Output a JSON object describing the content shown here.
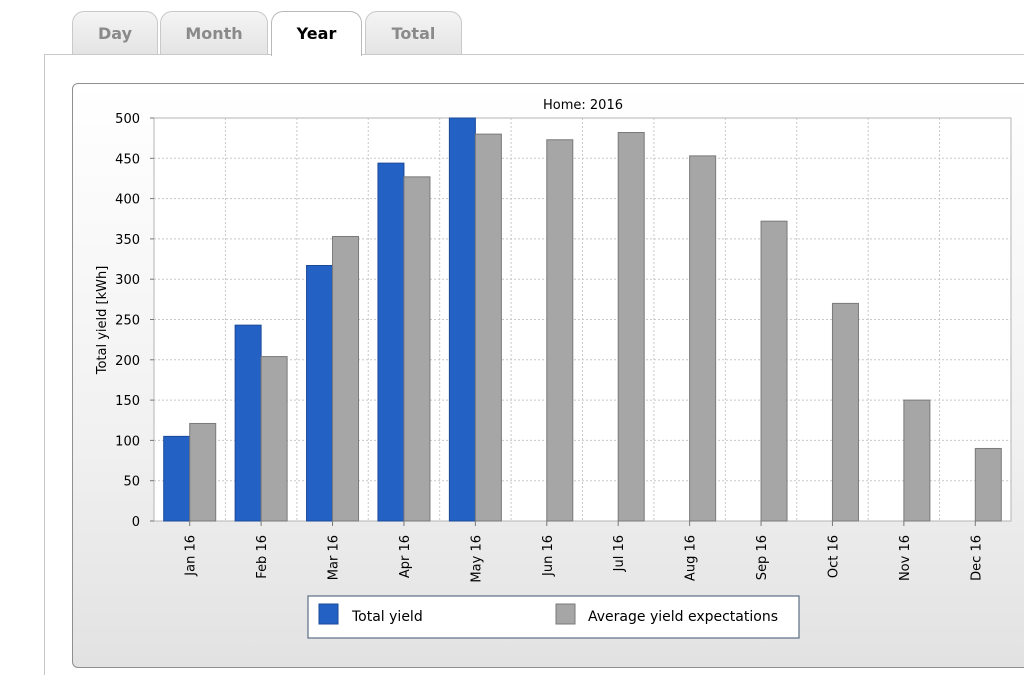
{
  "tabs": [
    {
      "label": "Day",
      "active": false
    },
    {
      "label": "Month",
      "active": false
    },
    {
      "label": "Year",
      "active": true
    },
    {
      "label": "Total",
      "active": false
    }
  ],
  "colors": {
    "total_yield": "#2461c4",
    "average_yield": "#a6a6a6"
  },
  "chart_data": {
    "type": "bar",
    "title": "Home: 2016",
    "xlabel": "",
    "ylabel": "Total yield [kWh]",
    "ylim": [
      0,
      500
    ],
    "yticks": [
      0,
      50,
      100,
      150,
      200,
      250,
      300,
      350,
      400,
      450,
      500
    ],
    "grid": true,
    "legend_position": "bottom",
    "categories": [
      "Jan 16",
      "Feb 16",
      "Mar 16",
      "Apr 16",
      "May 16",
      "Jun 16",
      "Jul 16",
      "Aug 16",
      "Sep 16",
      "Oct 16",
      "Nov 16",
      "Dec 16"
    ],
    "series": [
      {
        "name": "Total yield",
        "color": "#2461c4",
        "values": [
          105,
          243,
          317,
          444,
          500,
          null,
          null,
          null,
          null,
          null,
          null,
          null
        ]
      },
      {
        "name": "Average yield expectations",
        "color": "#a6a6a6",
        "values": [
          121,
          204,
          353,
          427,
          480,
          473,
          482,
          453,
          372,
          270,
          150,
          90
        ]
      }
    ]
  }
}
